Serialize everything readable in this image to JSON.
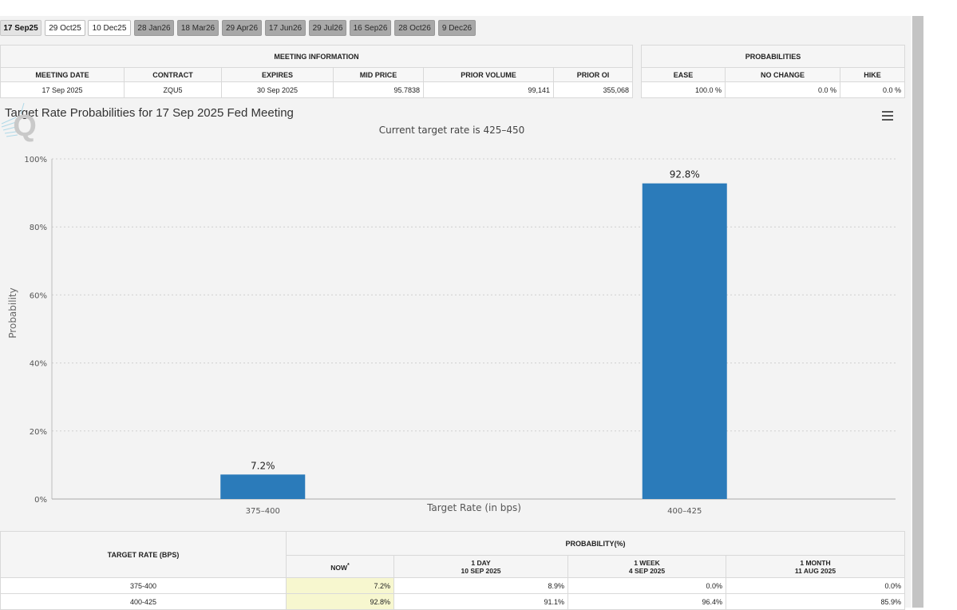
{
  "tabs": [
    {
      "label": "17 Sep25",
      "state": "selected"
    },
    {
      "label": "29 Oct25",
      "state": "active"
    },
    {
      "label": "10 Dec25",
      "state": "active"
    },
    {
      "label": "28 Jan26",
      "state": "inactive"
    },
    {
      "label": "18 Mar26",
      "state": "inactive"
    },
    {
      "label": "29 Apr26",
      "state": "inactive"
    },
    {
      "label": "17 Jun26",
      "state": "inactive"
    },
    {
      "label": "29 Jul26",
      "state": "inactive"
    },
    {
      "label": "16 Sep26",
      "state": "inactive"
    },
    {
      "label": "28 Oct26",
      "state": "inactive"
    },
    {
      "label": "9 Dec26",
      "state": "inactive"
    }
  ],
  "meeting_info": {
    "title": "MEETING INFORMATION",
    "columns": [
      "MEETING DATE",
      "CONTRACT",
      "EXPIRES",
      "MID PRICE",
      "PRIOR VOLUME",
      "PRIOR OI"
    ],
    "values": [
      "17 Sep 2025",
      "ZQU5",
      "30 Sep 2025",
      "95.7838",
      "99,141",
      "355,068"
    ]
  },
  "probabilities": {
    "title": "PROBABILITIES",
    "columns": [
      "EASE",
      "NO CHANGE",
      "HIKE"
    ],
    "values": [
      "100.0 %",
      "0.0 %",
      "0.0 %"
    ]
  },
  "chart_data": {
    "type": "bar",
    "title": "Target Rate Probabilities for 17 Sep 2025 Fed Meeting",
    "subtitle": "Current target rate is 425–450",
    "xlabel": "Target Rate (in bps)",
    "ylabel": "Probability",
    "categories": [
      "375–400",
      "400–425"
    ],
    "values": [
      7.2,
      92.8
    ],
    "data_labels": [
      "7.2%",
      "92.8%"
    ],
    "ylim": [
      0,
      100
    ],
    "yticks": [
      0,
      20,
      40,
      60,
      80,
      100
    ],
    "ytick_labels": [
      "0%",
      "20%",
      "40%",
      "60%",
      "80%",
      "100%"
    ],
    "grid": true,
    "bar_color": "#2b7bba"
  },
  "rate_table": {
    "col_target": "TARGET RATE (BPS)",
    "prob_header": "PROBABILITY(%)",
    "sub_cols": [
      {
        "line1": "NOW",
        "line2": "",
        "sup": "*"
      },
      {
        "line1": "1 DAY",
        "line2": "10 SEP 2025",
        "sup": ""
      },
      {
        "line1": "1 WEEK",
        "line2": "4 SEP 2025",
        "sup": ""
      },
      {
        "line1": "1 MONTH",
        "line2": "11 AUG 2025",
        "sup": ""
      }
    ],
    "rows": [
      {
        "rate": "375-400",
        "vals": [
          "7.2%",
          "8.9%",
          "0.0%",
          "0.0%"
        ]
      },
      {
        "rate": "400-425",
        "vals": [
          "92.8%",
          "91.1%",
          "96.4%",
          "85.9%"
        ]
      }
    ]
  },
  "colors": {
    "accent": "#2b7bba",
    "now_highlight": "#f7f7cf",
    "tab_inactive": "#a8a8a8"
  },
  "icons": {
    "chart_menu": "hamburger-menu-icon",
    "watermark": "quikstrike-q-logo"
  }
}
